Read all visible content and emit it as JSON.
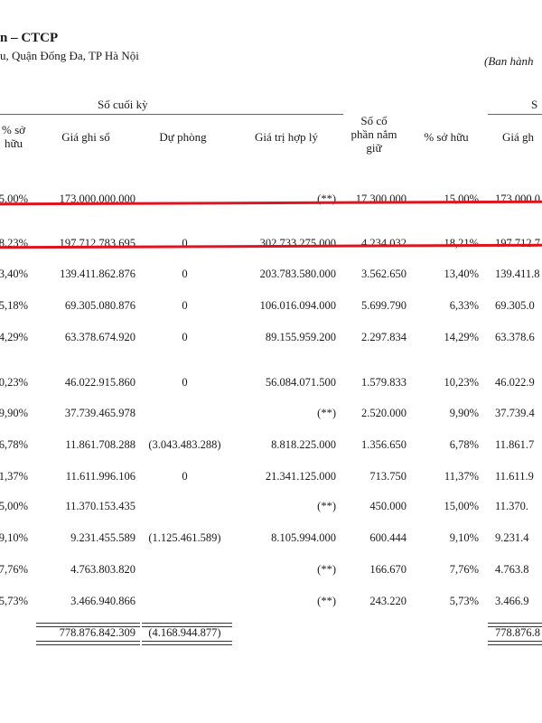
{
  "header": {
    "company": "n – CTCP",
    "address": "u, Quận Đống Đa, TP Hà Nội",
    "issued": "(Ban hành"
  },
  "groups": {
    "end_period": "Số cuối kỳ",
    "start_period": "S"
  },
  "columns": {
    "pct_prev_1": "% sở",
    "pct_prev_2": "hữu",
    "book_value": "Giá ghi sổ",
    "provision": "Dự phòng",
    "fair_value": "Giá trị hợp lý",
    "shares_1": "Số cổ",
    "shares_2": "phần nắm",
    "shares_3": "giữ",
    "pct": "% sở hữu",
    "book_value_start": "Giá gh"
  },
  "rows": [
    [
      "5,00%",
      "173.000.000.000",
      "",
      "(**)",
      "17.300.000",
      "15,00%",
      "173.000.0"
    ],
    [
      "8,23%",
      "197.712.783.695",
      "0",
      "302.733.275.000",
      "4.234.032",
      "18,21%",
      "197.712.7"
    ],
    [
      "3,40%",
      "139.411.862.876",
      "0",
      "203.783.580.000",
      "3.562.650",
      "13,40%",
      "139.411.8"
    ],
    [
      "5,18%",
      "69.305.080.876",
      "0",
      "106.016.094.000",
      "5.699.790",
      "6,33%",
      "69.305.0"
    ],
    [
      "4,29%",
      "63.378.674.920",
      "0",
      "89.155.959.200",
      "2.297.834",
      "14,29%",
      "63.378.6"
    ],
    [
      "0,23%",
      "46.022.915.860",
      "0",
      "56.084.071.500",
      "1.579.833",
      "10,23%",
      "46.022.9"
    ],
    [
      "9,90%",
      "37.739.465.978",
      "",
      "(**)",
      "2.520.000",
      "9,90%",
      "37.739.4"
    ],
    [
      "6,78%",
      "11.861.708.288",
      "(3.043.483.288)",
      "8.818.225.000",
      "1.356.650",
      "6,78%",
      "11.861.7"
    ],
    [
      "1,37%",
      "11.611.996.106",
      "0",
      "21.341.125.000",
      "713.750",
      "11,37%",
      "11.611.9"
    ],
    [
      "5,00%",
      "11.370.153.435",
      "",
      "(**)",
      "450.000",
      "15,00%",
      "11.370."
    ],
    [
      "9,10%",
      "9.231.455.589",
      "(1.125.461.589)",
      "8.105.994.000",
      "600.444",
      "9,10%",
      "9.231.4"
    ],
    [
      "7,76%",
      "4.763.803.820",
      "",
      "(**)",
      "166.670",
      "7,76%",
      "4.763.8"
    ],
    [
      "5,73%",
      "3.466.940.866",
      "",
      "(**)",
      "243.220",
      "5,73%",
      "3.466.9"
    ]
  ],
  "totals": {
    "book_value": "778.876.842.309",
    "provision": "(4.168.944.877)",
    "book_value_start": "778.876.8"
  },
  "colors": {
    "highlight": "#e0141e",
    "text": "#1a1a1a"
  }
}
